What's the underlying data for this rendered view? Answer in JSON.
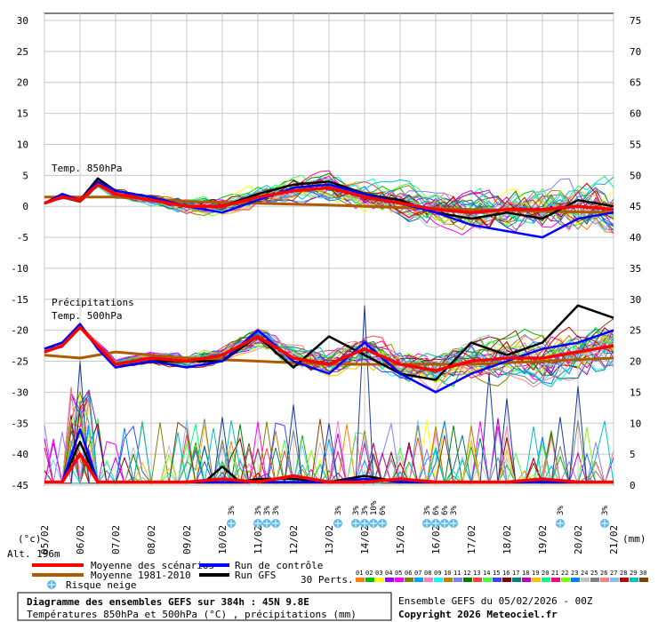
{
  "chart_data": {
    "type": "line",
    "left_axis_unit": "(°c)",
    "right_axis_unit": "(mm)",
    "left_ticks": [
      30,
      25,
      20,
      15,
      10,
      5,
      0,
      -5,
      -10,
      -15,
      -20,
      -25,
      -30,
      -35,
      -40,
      -45
    ],
    "right_ticks": [
      75,
      70,
      65,
      60,
      55,
      50,
      45,
      40,
      35,
      30,
      25,
      20,
      15,
      10,
      5,
      0
    ],
    "left_ylim": [
      -45,
      30
    ],
    "right_ylim": [
      0,
      75
    ],
    "date_labels": [
      "05/02",
      "06/02",
      "07/02",
      "08/02",
      "09/02",
      "10/02",
      "11/02",
      "12/02",
      "13/02",
      "14/02",
      "15/02",
      "16/02",
      "17/02",
      "18/02",
      "19/02",
      "20/02",
      "21/02"
    ],
    "x_range_hours": [
      0,
      384
    ],
    "panel_labels": {
      "t850": "Temp. 850hPa",
      "precip": "Précipitations",
      "t500": "Temp. 500hPa"
    },
    "altitude_label": "Alt. 196m",
    "t850": {
      "mean": [
        [
          0,
          0.5
        ],
        [
          12,
          1.5
        ],
        [
          24,
          1
        ],
        [
          36,
          3.5
        ],
        [
          48,
          2
        ],
        [
          72,
          1
        ],
        [
          96,
          0
        ],
        [
          120,
          0
        ],
        [
          144,
          1.5
        ],
        [
          168,
          2.5
        ],
        [
          192,
          3
        ],
        [
          216,
          1.5
        ],
        [
          240,
          0.5
        ],
        [
          264,
          -0.5
        ],
        [
          288,
          -1
        ],
        [
          312,
          -0.5
        ],
        [
          336,
          -0.5
        ],
        [
          360,
          0
        ],
        [
          384,
          -0.5
        ]
      ],
      "climatology": [
        [
          0,
          1.5
        ],
        [
          48,
          1.5
        ],
        [
          96,
          0.8
        ],
        [
          144,
          0.5
        ],
        [
          192,
          0.2
        ],
        [
          240,
          -0.2
        ],
        [
          288,
          -0.5
        ],
        [
          336,
          -0.8
        ],
        [
          384,
          -1
        ]
      ],
      "control": [
        [
          0,
          0.5
        ],
        [
          12,
          2
        ],
        [
          24,
          1
        ],
        [
          36,
          4
        ],
        [
          48,
          2.5
        ],
        [
          72,
          1.5
        ],
        [
          96,
          0
        ],
        [
          120,
          -1
        ],
        [
          144,
          1
        ],
        [
          168,
          3
        ],
        [
          192,
          3.5
        ],
        [
          216,
          2
        ],
        [
          240,
          0.5
        ],
        [
          264,
          -1
        ],
        [
          288,
          -3
        ],
        [
          312,
          -4
        ],
        [
          336,
          -5
        ],
        [
          360,
          -2
        ],
        [
          384,
          -1
        ]
      ],
      "gfs": [
        [
          0,
          0.5
        ],
        [
          12,
          2
        ],
        [
          24,
          1
        ],
        [
          36,
          4.5
        ],
        [
          48,
          2.5
        ],
        [
          72,
          1.5
        ],
        [
          96,
          0
        ],
        [
          120,
          0
        ],
        [
          144,
          2
        ],
        [
          168,
          3.5
        ],
        [
          192,
          4
        ],
        [
          216,
          2
        ],
        [
          240,
          1
        ],
        [
          264,
          -1
        ],
        [
          288,
          -2
        ],
        [
          312,
          -1
        ],
        [
          336,
          -2
        ],
        [
          360,
          1
        ],
        [
          384,
          0
        ]
      ]
    },
    "t500": {
      "mean": [
        [
          0,
          -23.5
        ],
        [
          12,
          -22.5
        ],
        [
          24,
          -19.5
        ],
        [
          36,
          -22.5
        ],
        [
          48,
          -25.5
        ],
        [
          72,
          -24.5
        ],
        [
          96,
          -25
        ],
        [
          120,
          -24
        ],
        [
          144,
          -21
        ],
        [
          168,
          -24.5
        ],
        [
          192,
          -25.5
        ],
        [
          216,
          -23
        ],
        [
          240,
          -25.5
        ],
        [
          264,
          -26.5
        ],
        [
          288,
          -25
        ],
        [
          312,
          -24.5
        ],
        [
          336,
          -24.5
        ],
        [
          360,
          -23.5
        ],
        [
          384,
          -22.5
        ]
      ],
      "climatology": [
        [
          0,
          -24
        ],
        [
          24,
          -24.5
        ],
        [
          48,
          -23.5
        ],
        [
          96,
          -24.5
        ],
        [
          144,
          -25
        ],
        [
          192,
          -25.5
        ],
        [
          240,
          -25.5
        ],
        [
          288,
          -25.5
        ],
        [
          336,
          -25
        ],
        [
          384,
          -24.5
        ]
      ],
      "control": [
        [
          0,
          -23
        ],
        [
          12,
          -22
        ],
        [
          24,
          -19
        ],
        [
          36,
          -23
        ],
        [
          48,
          -26
        ],
        [
          72,
          -25
        ],
        [
          96,
          -26
        ],
        [
          120,
          -25
        ],
        [
          144,
          -20
        ],
        [
          168,
          -25
        ],
        [
          192,
          -27
        ],
        [
          216,
          -22
        ],
        [
          240,
          -27
        ],
        [
          264,
          -30
        ],
        [
          288,
          -27
        ],
        [
          312,
          -25
        ],
        [
          336,
          -23
        ],
        [
          360,
          -22
        ],
        [
          384,
          -20
        ]
      ],
      "gfs": [
        [
          0,
          -23
        ],
        [
          12,
          -22
        ],
        [
          24,
          -19
        ],
        [
          36,
          -23
        ],
        [
          48,
          -26
        ],
        [
          72,
          -25
        ],
        [
          96,
          -25
        ],
        [
          120,
          -25
        ],
        [
          144,
          -21
        ],
        [
          168,
          -26
        ],
        [
          192,
          -21
        ],
        [
          216,
          -24
        ],
        [
          240,
          -27
        ],
        [
          264,
          -28
        ],
        [
          288,
          -22
        ],
        [
          312,
          -24
        ],
        [
          336,
          -22
        ],
        [
          360,
          -16
        ],
        [
          384,
          -18
        ]
      ]
    },
    "precip_mm": {
      "mean": [
        [
          0,
          0.5
        ],
        [
          12,
          0.5
        ],
        [
          24,
          5
        ],
        [
          36,
          0.5
        ],
        [
          48,
          0.5
        ],
        [
          96,
          0.5
        ],
        [
          120,
          1
        ],
        [
          144,
          0.5
        ],
        [
          168,
          1.5
        ],
        [
          192,
          0.5
        ],
        [
          216,
          0.5
        ],
        [
          240,
          1
        ],
        [
          264,
          0.5
        ],
        [
          288,
          0.5
        ],
        [
          312,
          0.5
        ],
        [
          336,
          1
        ],
        [
          360,
          0.5
        ],
        [
          384,
          0.5
        ]
      ],
      "gfs": [
        [
          0,
          0.5
        ],
        [
          12,
          0.5
        ],
        [
          24,
          7
        ],
        [
          36,
          0.5
        ],
        [
          72,
          0.5
        ],
        [
          108,
          0.5
        ],
        [
          120,
          3
        ],
        [
          132,
          0.5
        ],
        [
          144,
          1
        ],
        [
          168,
          1
        ],
        [
          192,
          0.5
        ],
        [
          216,
          1.5
        ],
        [
          240,
          0.5
        ],
        [
          384,
          0.5
        ]
      ],
      "control": [
        [
          0,
          0.5
        ],
        [
          12,
          0.5
        ],
        [
          24,
          9
        ],
        [
          36,
          0.5
        ],
        [
          120,
          0.5
        ],
        [
          144,
          0.5
        ],
        [
          168,
          0.5
        ],
        [
          192,
          0.5
        ],
        [
          216,
          1
        ],
        [
          240,
          0.5
        ],
        [
          384,
          0.5
        ]
      ],
      "spikes": [
        [
          24,
          20
        ],
        [
          120,
          11
        ],
        [
          168,
          13
        ],
        [
          192,
          10
        ],
        [
          216,
          29
        ],
        [
          300,
          18
        ],
        [
          312,
          14
        ],
        [
          348,
          11
        ],
        [
          360,
          16
        ]
      ]
    },
    "snow_risk": [
      {
        "h": 126,
        "pct": "3%"
      },
      {
        "h": 144,
        "pct": "3%"
      },
      {
        "h": 150,
        "pct": "3%"
      },
      {
        "h": 156,
        "pct": "3%"
      },
      {
        "h": 198,
        "pct": "3%"
      },
      {
        "h": 210,
        "pct": "3%"
      },
      {
        "h": 216,
        "pct": "3%"
      },
      {
        "h": 222,
        "pct": "10%"
      },
      {
        "h": 228,
        "pct": "6%"
      },
      {
        "h": 258,
        "pct": "3%"
      },
      {
        "h": 264,
        "pct": "6%"
      },
      {
        "h": 270,
        "pct": "6%"
      },
      {
        "h": 276,
        "pct": "3%"
      },
      {
        "h": 348,
        "pct": "3%"
      },
      {
        "h": 378,
        "pct": "3%"
      }
    ],
    "legend": {
      "mean": "Moyenne des scénarios",
      "climatology": "Moyenne 1981-2010",
      "snow": "Risque neige",
      "control": "Run de contrôle",
      "gfs": "Run GFS",
      "perts": "30 Perts."
    },
    "members": [
      "01",
      "02",
      "03",
      "04",
      "05",
      "06",
      "07",
      "08",
      "09",
      "10",
      "11",
      "12",
      "13",
      "14",
      "15",
      "16",
      "17",
      "18",
      "19",
      "20",
      "21",
      "22",
      "23",
      "24",
      "25",
      "26",
      "27",
      "28",
      "29",
      "30"
    ],
    "member_colors": [
      "#ff8000",
      "#00c000",
      "#ffff00",
      "#a000ff",
      "#ff00ff",
      "#808000",
      "#00a0ff",
      "#ff80c0",
      "#00ffff",
      "#c08000",
      "#8080ff",
      "#008000",
      "#ff4040",
      "#40ff40",
      "#4040ff",
      "#800000",
      "#008080",
      "#c000c0",
      "#ffc000",
      "#00ff80",
      "#ff0080",
      "#80ff00",
      "#0080ff",
      "#c0c0c0",
      "#808080",
      "#ff8080",
      "#80c0ff",
      "#c00000",
      "#00c0c0",
      "#804000"
    ],
    "colors": {
      "mean": "#ff0000",
      "climatology": "#b05a00",
      "control": "#0000ff",
      "gfs": "#000000",
      "snow": "#5cb8e6"
    }
  },
  "footer": {
    "title": "Diagramme des ensembles GEFS sur 384h : 45N 9.8E",
    "subtitle": "Températures 850hPa et 500hPa (°C) , précipitations (mm)",
    "run": "Ensemble GEFS du 05/02/2026 - 00Z",
    "copyright": "Copyright 2026 Meteociel.fr"
  }
}
